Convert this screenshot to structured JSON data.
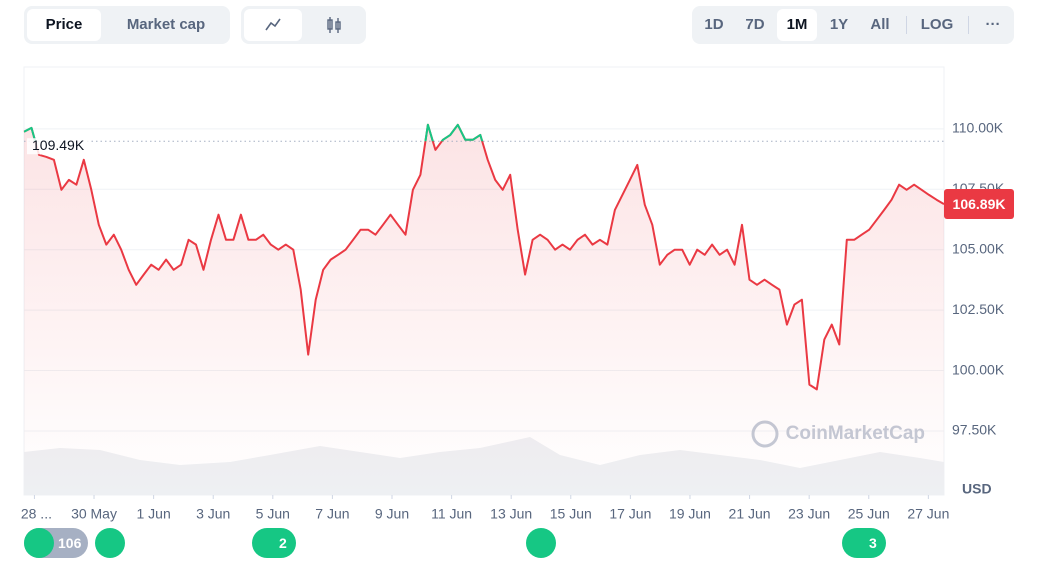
{
  "toolbar": {
    "tabs": [
      "Price",
      "Market cap"
    ],
    "ranges": [
      "1D",
      "7D",
      "1M",
      "1Y",
      "All",
      "LOG"
    ],
    "more": "···"
  },
  "chart_data": {
    "type": "line",
    "color": "#ea3943",
    "color_above_reference": "#16c784",
    "values": [
      109880,
      110040,
      108930,
      108840,
      108720,
      107480,
      107890,
      107690,
      108720,
      107480,
      106030,
      105210,
      105620,
      105000,
      104170,
      103550,
      103970,
      104380,
      104170,
      104590,
      104170,
      104380,
      105410,
      105210,
      104170,
      105410,
      106450,
      105410,
      105410,
      106450,
      105410,
      105410,
      105620,
      105210,
      105000,
      105210,
      105000,
      103350,
      100660,
      102930,
      104170,
      104590,
      104790,
      105000,
      105410,
      105830,
      105830,
      105620,
      106030,
      106450,
      106030,
      105620,
      107480,
      108100,
      110170,
      109130,
      109550,
      109750,
      110170,
      109550,
      109550,
      109750,
      108720,
      107890,
      107480,
      108100,
      105830,
      103970,
      105410,
      105620,
      105410,
      105000,
      105210,
      105000,
      105410,
      105620,
      105210,
      105410,
      105210,
      106650,
      107270,
      107890,
      108510,
      106860,
      106030,
      104380,
      104790,
      105000,
      105000,
      104380,
      105000,
      104790,
      105210,
      104790,
      105000,
      104380,
      106030,
      103760,
      103550,
      103760,
      103550,
      103350,
      101900,
      102730,
      102930,
      99420,
      99220,
      101280,
      101900,
      101080,
      105410,
      105410,
      105620,
      105830,
      106240,
      106650,
      107070,
      107690,
      107480,
      107690,
      107480,
      107270,
      107070,
      106890
    ],
    "xlim": [
      -1.4,
      122.1
    ],
    "xticks": [
      {
        "value": 0,
        "label": "28 ..."
      },
      {
        "value": 8,
        "label": "30 May"
      },
      {
        "value": 16,
        "label": "1 Jun"
      },
      {
        "value": 24,
        "label": "3 Jun"
      },
      {
        "value": 32,
        "label": "5 Jun"
      },
      {
        "value": 40,
        "label": "7 Jun"
      },
      {
        "value": 48,
        "label": "9 Jun"
      },
      {
        "value": 56,
        "label": "11 Jun"
      },
      {
        "value": 64,
        "label": "13 Jun"
      },
      {
        "value": 72,
        "label": "15 Jun"
      },
      {
        "value": 80,
        "label": "17 Jun"
      },
      {
        "value": 88,
        "label": "19 Jun"
      },
      {
        "value": 96,
        "label": "21 Jun"
      },
      {
        "value": 104,
        "label": "23 Jun"
      },
      {
        "value": 112,
        "label": "25 Jun"
      },
      {
        "value": 120,
        "label": "27 Jun"
      }
    ],
    "ylim": [
      94850,
      112520
    ],
    "yticks": [
      {
        "value": 97500,
        "label": "97.50K"
      },
      {
        "value": 100000,
        "label": "100.00K"
      },
      {
        "value": 102500,
        "label": "102.50K"
      },
      {
        "value": 105000,
        "label": "105.00K"
      },
      {
        "value": 107500,
        "label": "107.50K"
      },
      {
        "value": 110000,
        "label": "110.00K"
      }
    ],
    "grid": true,
    "reference": {
      "value": 109490,
      "label": "109.49K"
    },
    "last": {
      "value": 106890,
      "label": "106.89K"
    },
    "unit": "USD",
    "watermark": "CoinMarketCap",
    "events": [
      "106",
      "2",
      "3"
    ]
  }
}
